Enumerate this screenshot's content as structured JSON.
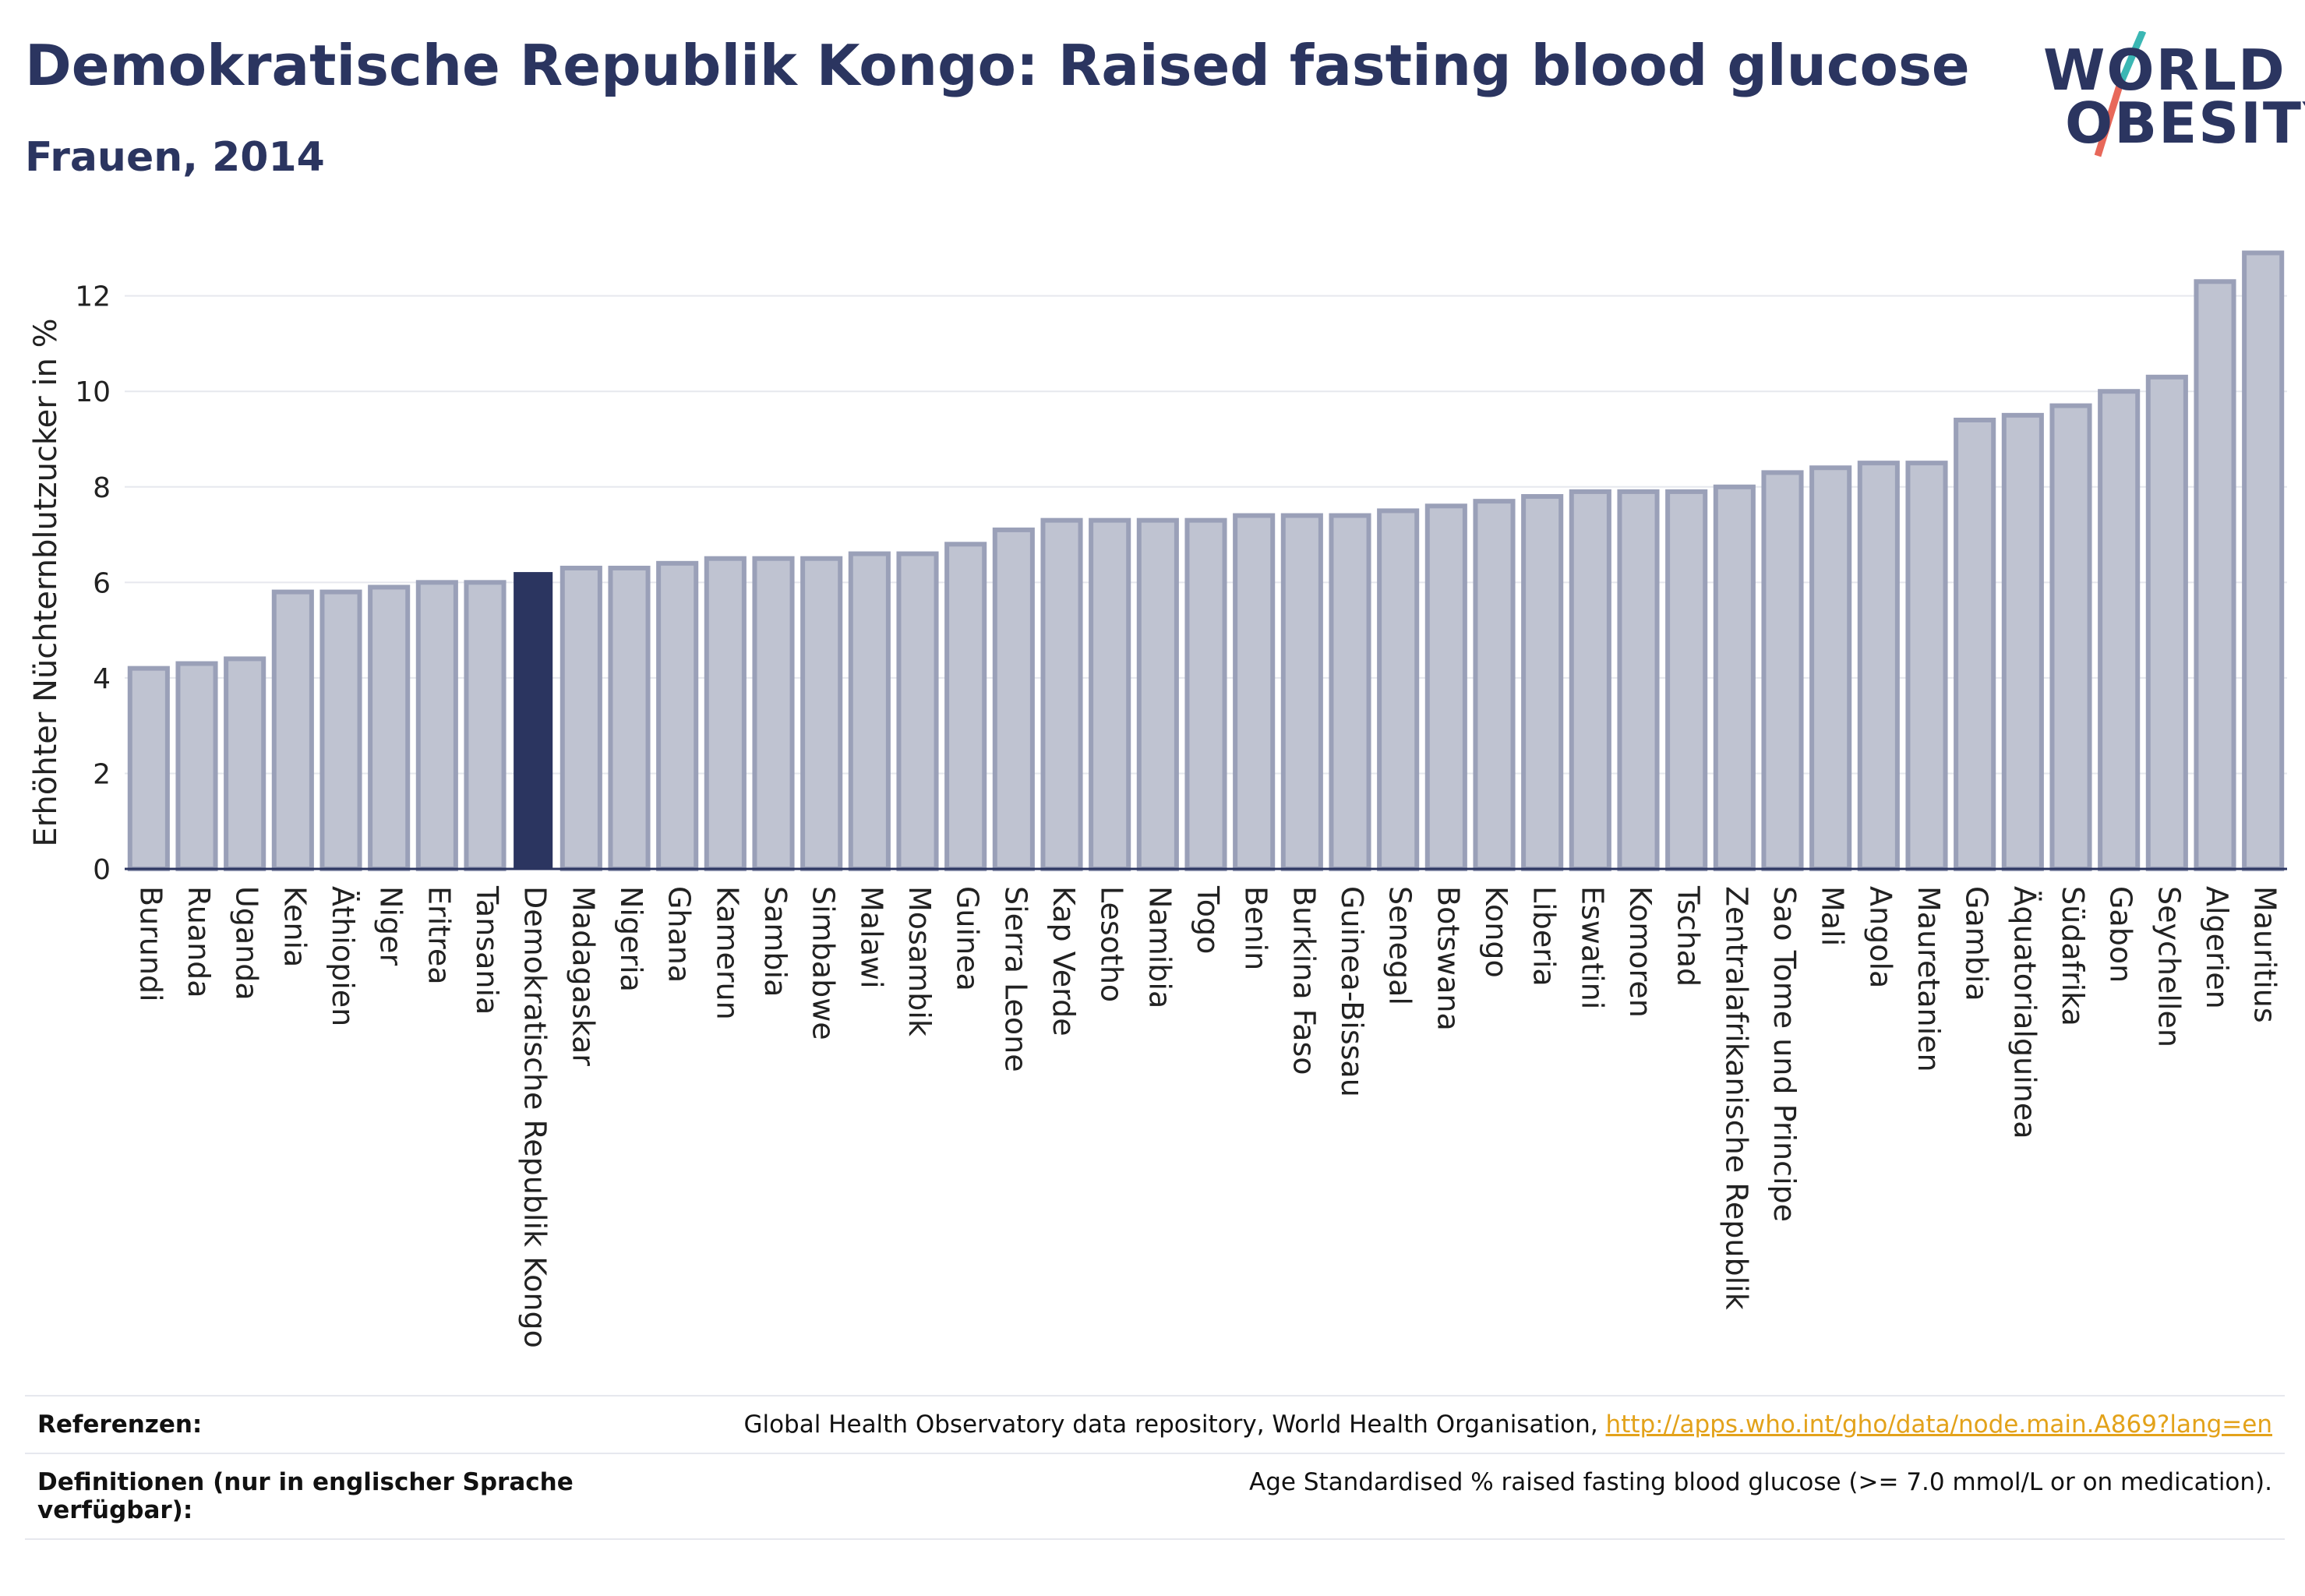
{
  "header": {
    "title": "Demokratische Republik Kongo: Raised fasting blood glucose",
    "subtitle": "Frauen, 2014"
  },
  "logo": {
    "line1": "WORLD",
    "line2": "OBESITY",
    "accent_colors": [
      "#3bb7b4",
      "#e8685a"
    ]
  },
  "colors": {
    "bar": "#bfc3d1",
    "bar_border": "#9aa0b8",
    "highlight": "#2b3560",
    "text": "#2b3560"
  },
  "chart_data": {
    "type": "bar",
    "ylabel": "Erhöhter Nüchternblutzucker in %",
    "ylim": [
      0,
      13.3
    ],
    "yticks": [
      0,
      2,
      4,
      6,
      8,
      10,
      12
    ],
    "grid": true,
    "highlight": "Demokratische Republik Kongo",
    "categories": [
      "Burundi",
      "Ruanda",
      "Uganda",
      "Kenia",
      "Äthiopien",
      "Niger",
      "Eritrea",
      "Tansania",
      "Demokratische Republik Kongo",
      "Madagaskar",
      "Nigeria",
      "Ghana",
      "Kamerun",
      "Sambia",
      "Simbabwe",
      "Malawi",
      "Mosambik",
      "Guinea",
      "Sierra Leone",
      "Kap Verde",
      "Lesotho",
      "Namibia",
      "Togo",
      "Benin",
      "Burkina Faso",
      "Guinea-Bissau",
      "Senegal",
      "Botswana",
      "Kongo",
      "Liberia",
      "Eswatini",
      "Komoren",
      "Tschad",
      "Zentralafrikanische Republik",
      "Sao Tome und Principe",
      "Mali",
      "Angola",
      "Mauretanien",
      "Gambia",
      "Äquatorialguinea",
      "Südafrika",
      "Gabon",
      "Seychellen",
      "Algerien",
      "Mauritius"
    ],
    "values": [
      4.2,
      4.3,
      4.4,
      5.8,
      5.8,
      5.9,
      6.0,
      6.0,
      6.2,
      6.3,
      6.3,
      6.4,
      6.5,
      6.5,
      6.5,
      6.6,
      6.6,
      6.8,
      7.1,
      7.3,
      7.3,
      7.3,
      7.3,
      7.4,
      7.4,
      7.4,
      7.5,
      7.6,
      7.7,
      7.8,
      7.9,
      7.9,
      7.9,
      8.0,
      8.3,
      8.4,
      8.5,
      8.5,
      9.4,
      9.5,
      9.7,
      10.0,
      10.3,
      12.3,
      12.9
    ]
  },
  "footer": {
    "references_label": "Referenzen:",
    "references_text": "Global Health Observatory data repository, World Health Organisation,",
    "references_link": "http://apps.who.int/gho/data/node.main.A869?lang=en",
    "definitions_label": "Definitionen (nur in englischer Sprache verfügbar):",
    "definitions_text": "Age Standardised % raised fasting blood glucose (>= 7.0 mmol/L or on medication)."
  }
}
